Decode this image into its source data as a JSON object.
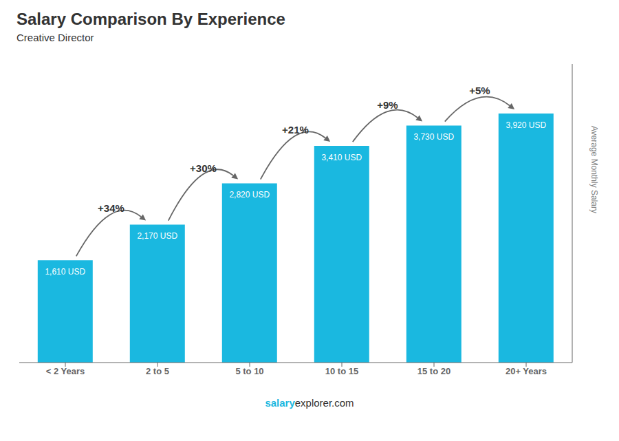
{
  "chart_data": {
    "type": "bar",
    "title": "Salary Comparison By Experience",
    "subtitle": "Creative Director",
    "y_label": "Average Monthly Salary",
    "categories": [
      "< 2 Years",
      "2 to 5",
      "5 to 10",
      "10 to 15",
      "15 to 20",
      "20+ Years"
    ],
    "values": [
      1610,
      2170,
      2820,
      3410,
      3730,
      3920
    ],
    "value_labels": [
      "1,610 USD",
      "2,170 USD",
      "2,820 USD",
      "3,410 USD",
      "3,730 USD",
      "3,920 USD"
    ],
    "data_labels": true,
    "annotations": [
      "+34%",
      "+30%",
      "+21%",
      "+9%",
      "+5%"
    ],
    "footer": [
      "salary",
      "explorer.com"
    ],
    "color": "#1ab8e0",
    "ylim": [
      0,
      4700
    ],
    "tick_labels": "x",
    "grid": false
  }
}
